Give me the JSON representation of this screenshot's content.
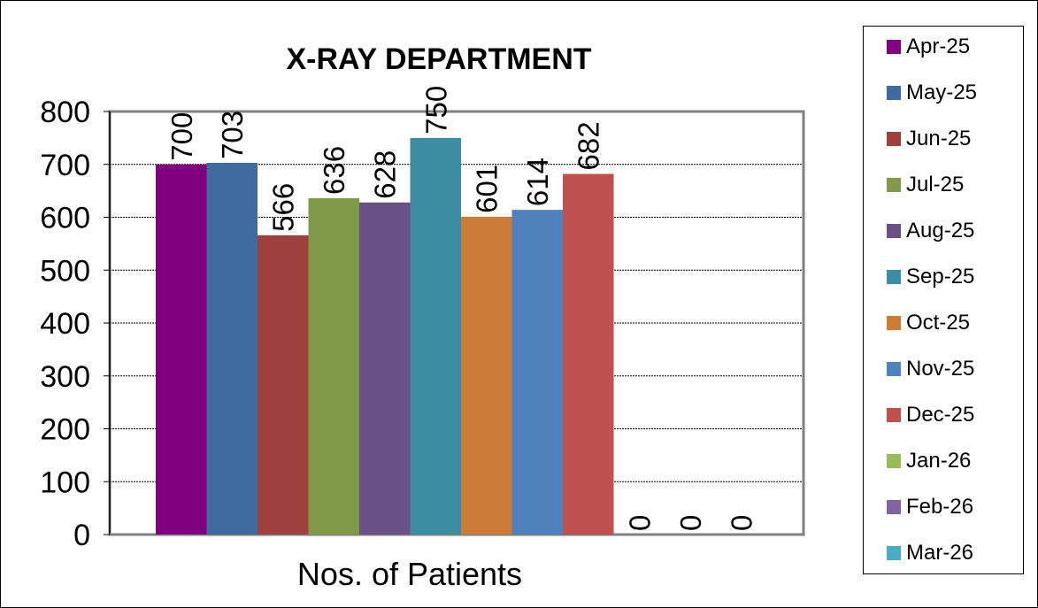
{
  "chart_data": {
    "type": "bar",
    "title": "X-RAY DEPARTMENT",
    "xlabel": "Nos. of Patients",
    "ylabel": "",
    "categories": [
      "Nos. of Patients"
    ],
    "ylim": [
      0,
      800
    ],
    "yticks": [
      0,
      100,
      200,
      300,
      400,
      500,
      600,
      700,
      800
    ],
    "grid": true,
    "legend_position": "right",
    "series": [
      {
        "name": "Apr-25",
        "value": 700,
        "label": "700",
        "color": "#800080"
      },
      {
        "name": "May-25",
        "value": 703,
        "label": "703",
        "color": "#3F6AA0"
      },
      {
        "name": "Jun-25",
        "value": 566,
        "label": "566",
        "color": "#9E413E"
      },
      {
        "name": "Jul-25",
        "value": 636,
        "label": "636",
        "color": "#7F9A48"
      },
      {
        "name": "Aug-25",
        "value": 628,
        "label": "628",
        "color": "#695185"
      },
      {
        "name": "Sep-25",
        "value": 750,
        "label": "750",
        "color": "#3C8DA3"
      },
      {
        "name": "Oct-25",
        "value": 601,
        "label": "601",
        "color": "#CC7B38"
      },
      {
        "name": "Nov-25",
        "value": 614,
        "label": "614",
        "color": "#4F81BD"
      },
      {
        "name": "Dec-25",
        "value": 682,
        "label": "682",
        "color": "#C0504D"
      },
      {
        "name": "Jan-26",
        "value": 0,
        "label": "0",
        "color": "#9BBB59"
      },
      {
        "name": "Feb-26",
        "value": 0,
        "label": "0",
        "color": "#8064A2"
      },
      {
        "name": "Mar-26",
        "value": 0,
        "label": "0",
        "color": "#4BACC6"
      }
    ]
  }
}
